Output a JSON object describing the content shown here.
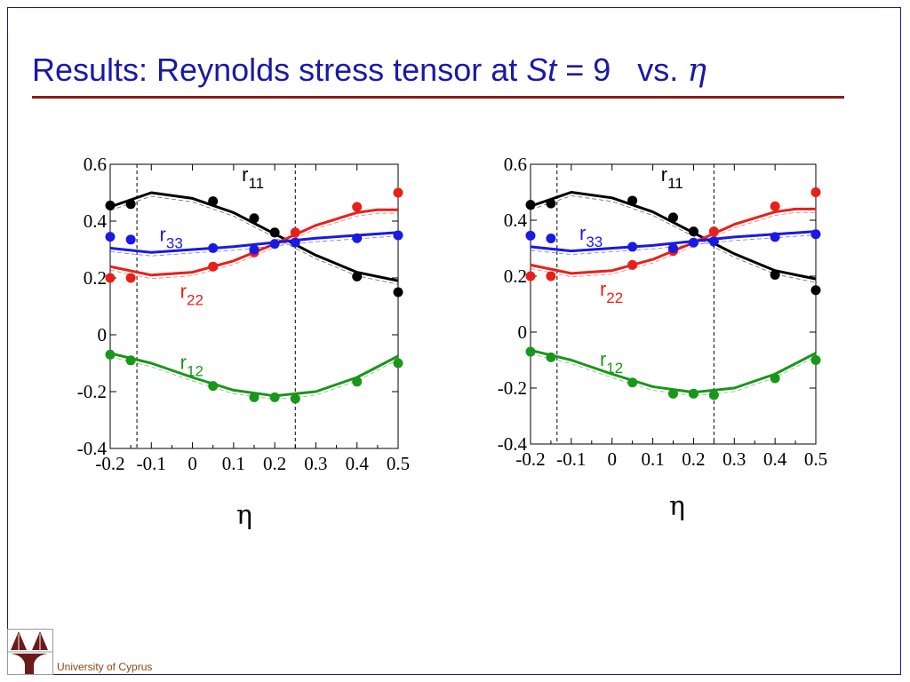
{
  "slide": {
    "title_prefix": "Results: Reynolds stress tensor at ",
    "title_st": "St",
    "title_eq": " = 9   vs. ",
    "title_eta": "η",
    "footer": "University of Cyprus",
    "logo_text": "University of Cyprus"
  },
  "chart_data": [
    {
      "type": "line",
      "xlabel": "η",
      "xlim": [
        -0.2,
        0.5
      ],
      "ylim": [
        -0.4,
        0.6
      ],
      "xticks": [
        "-0.2",
        "-0.1",
        "0",
        "0.1",
        "0.2",
        "0.3",
        "0.4",
        "0.5"
      ],
      "yticks": [
        "-0.4",
        "-0.2",
        "0",
        "0.2",
        "0.4",
        "0.6"
      ],
      "vlines": [
        -0.135,
        0.25
      ],
      "series": [
        {
          "name": "r11",
          "label": "r",
          "sub": "11",
          "color": "#000000",
          "line_x": [
            -0.2,
            -0.1,
            0,
            0.1,
            0.2,
            0.3,
            0.4,
            0.5
          ],
          "line_y": [
            0.45,
            0.5,
            0.48,
            0.43,
            0.355,
            0.28,
            0.22,
            0.19
          ],
          "points_x": [
            -0.2,
            -0.15,
            0.05,
            0.15,
            0.2,
            0.4,
            0.5
          ],
          "points_y": [
            0.455,
            0.46,
            0.47,
            0.41,
            0.36,
            0.205,
            0.15
          ]
        },
        {
          "name": "r22",
          "label": "r",
          "sub": "22",
          "color": "#e8201a",
          "line_x": [
            -0.2,
            -0.1,
            0,
            0.1,
            0.2,
            0.3,
            0.4,
            0.45,
            0.5
          ],
          "line_y": [
            0.24,
            0.21,
            0.22,
            0.26,
            0.32,
            0.385,
            0.43,
            0.44,
            0.44
          ],
          "points_x": [
            -0.2,
            -0.15,
            0.05,
            0.15,
            0.25,
            0.4,
            0.5
          ],
          "points_y": [
            0.2,
            0.2,
            0.24,
            0.29,
            0.36,
            0.45,
            0.5
          ]
        },
        {
          "name": "r33",
          "label": "r",
          "sub": "33",
          "color": "#1a1ae0",
          "line_x": [
            -0.2,
            -0.1,
            0,
            0.1,
            0.2,
            0.3,
            0.4,
            0.5
          ],
          "line_y": [
            0.305,
            0.29,
            0.3,
            0.31,
            0.325,
            0.34,
            0.35,
            0.36
          ],
          "points_x": [
            -0.2,
            -0.15,
            0.05,
            0.15,
            0.2,
            0.25,
            0.4,
            0.5
          ],
          "points_y": [
            0.345,
            0.335,
            0.305,
            0.3,
            0.32,
            0.325,
            0.34,
            0.35
          ]
        },
        {
          "name": "r12",
          "label": "r",
          "sub": "12",
          "color": "#1a961a",
          "line_x": [
            -0.2,
            -0.1,
            0,
            0.1,
            0.2,
            0.3,
            0.4,
            0.5
          ],
          "line_y": [
            -0.065,
            -0.1,
            -0.15,
            -0.195,
            -0.215,
            -0.2,
            -0.15,
            -0.075
          ],
          "points_x": [
            -0.2,
            -0.15,
            0.05,
            0.15,
            0.2,
            0.25,
            0.4,
            0.5
          ],
          "points_y": [
            -0.07,
            -0.09,
            -0.18,
            -0.22,
            -0.22,
            -0.225,
            -0.165,
            -0.1
          ]
        }
      ]
    },
    {
      "type": "line",
      "xlabel": "η",
      "xlim": [
        -0.2,
        0.5
      ],
      "ylim": [
        -0.4,
        0.6
      ],
      "xticks": [
        "-0.2",
        "-0.1",
        "0",
        "0.1",
        "0.2",
        "0.3",
        "0.4",
        "0.5"
      ],
      "yticks": [
        "-0.4",
        "-0.2",
        "0",
        "0.2",
        "0.4",
        "0.6"
      ],
      "vlines": [
        -0.135,
        0.25
      ],
      "series": [
        {
          "name": "r11",
          "label": "r",
          "sub": "11",
          "color": "#000000",
          "line_x": [
            -0.2,
            -0.1,
            0,
            0.1,
            0.2,
            0.3,
            0.4,
            0.5
          ],
          "line_y": [
            0.45,
            0.5,
            0.48,
            0.43,
            0.355,
            0.28,
            0.22,
            0.19
          ],
          "points_x": [
            -0.2,
            -0.15,
            0.05,
            0.15,
            0.2,
            0.4,
            0.5
          ],
          "points_y": [
            0.455,
            0.46,
            0.47,
            0.41,
            0.36,
            0.205,
            0.15
          ]
        },
        {
          "name": "r22",
          "label": "r",
          "sub": "22",
          "color": "#e8201a",
          "line_x": [
            -0.2,
            -0.1,
            0,
            0.1,
            0.2,
            0.3,
            0.4,
            0.45,
            0.5
          ],
          "line_y": [
            0.24,
            0.21,
            0.22,
            0.26,
            0.32,
            0.385,
            0.43,
            0.44,
            0.44
          ],
          "points_x": [
            -0.2,
            -0.15,
            0.05,
            0.15,
            0.25,
            0.4,
            0.5
          ],
          "points_y": [
            0.2,
            0.2,
            0.24,
            0.29,
            0.36,
            0.45,
            0.5
          ]
        },
        {
          "name": "r33",
          "label": "r",
          "sub": "33",
          "color": "#1a1ae0",
          "line_x": [
            -0.2,
            -0.1,
            0,
            0.1,
            0.2,
            0.3,
            0.4,
            0.5
          ],
          "line_y": [
            0.305,
            0.29,
            0.3,
            0.31,
            0.325,
            0.34,
            0.35,
            0.36
          ],
          "points_x": [
            -0.2,
            -0.15,
            0.05,
            0.15,
            0.2,
            0.25,
            0.4,
            0.5
          ],
          "points_y": [
            0.345,
            0.335,
            0.305,
            0.3,
            0.32,
            0.325,
            0.34,
            0.35
          ]
        },
        {
          "name": "r12",
          "label": "r",
          "sub": "12",
          "color": "#1a961a",
          "line_x": [
            -0.2,
            -0.1,
            0,
            0.1,
            0.2,
            0.3,
            0.4,
            0.5
          ],
          "line_y": [
            -0.065,
            -0.1,
            -0.15,
            -0.195,
            -0.215,
            -0.2,
            -0.15,
            -0.075
          ],
          "points_x": [
            -0.2,
            -0.15,
            0.05,
            0.15,
            0.2,
            0.25,
            0.4,
            0.5
          ],
          "points_y": [
            -0.07,
            -0.09,
            -0.18,
            -0.22,
            -0.22,
            -0.225,
            -0.165,
            -0.1
          ]
        }
      ]
    }
  ]
}
